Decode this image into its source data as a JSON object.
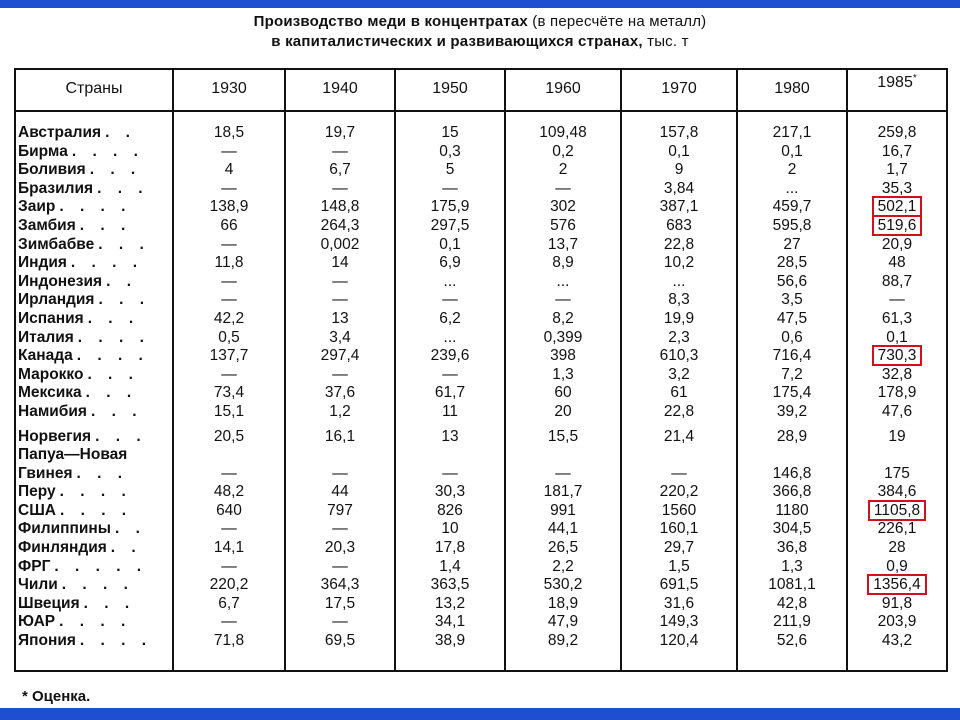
{
  "title": {
    "line1_bold": "Производство меди в концентратах",
    "line1_light": " (в пересчёте на металл)",
    "line2_bold": "в капиталистических и развивающихся странах,",
    "line2_light": " тыс. т"
  },
  "headers": [
    "Страны",
    "1930",
    "1940",
    "1950",
    "1960",
    "1970",
    "1980",
    "1985"
  ],
  "header_asterisk": "*",
  "rows": [
    {
      "country": "Австралия",
      "dots": ". .",
      "values": [
        "18,5",
        "19,7",
        "15",
        "109,48",
        "157,8",
        "217,1",
        "259,8"
      ]
    },
    {
      "country": "Бирма",
      "dots": ". . . .",
      "values": [
        "—",
        "—",
        "0,3",
        "0,2",
        "0,1",
        "0,1",
        "16,7"
      ]
    },
    {
      "country": "Боливия",
      "dots": ". . .",
      "values": [
        "4",
        "6,7",
        "5",
        "2",
        "9",
        "2",
        "1,7"
      ]
    },
    {
      "country": "Бразилия",
      "dots": ". . .",
      "values": [
        "—",
        "—",
        "—",
        "—",
        "3,84",
        "...",
        "35,3"
      ]
    },
    {
      "country": "Заир",
      "dots": ". . . .",
      "values": [
        "138,9",
        "148,8",
        "175,9",
        "302",
        "387,1",
        "459,7",
        "502,1"
      ]
    },
    {
      "country": "Замбия",
      "dots": ". . .",
      "values": [
        "66",
        "264,3",
        "297,5",
        "576",
        "683",
        "595,8",
        "519,6"
      ]
    },
    {
      "country": "Зимбабве",
      "dots": ". . .",
      "values": [
        "—",
        "0,002",
        "0,1",
        "13,7",
        "22,8",
        "27",
        "20,9"
      ]
    },
    {
      "country": "Индия",
      "dots": ". . . .",
      "values": [
        "11,8",
        "14",
        "6,9",
        "8,9",
        "10,2",
        "28,5",
        "48"
      ]
    },
    {
      "country": "Индонезия",
      "dots": ". .",
      "values": [
        "—",
        "—",
        "...",
        "...",
        "...",
        "56,6",
        "88,7"
      ]
    },
    {
      "country": "Ирландия",
      "dots": ". . .",
      "values": [
        "—",
        "—",
        "—",
        "—",
        "8,3",
        "3,5",
        "—"
      ]
    },
    {
      "country": "Испания",
      "dots": ". . .",
      "values": [
        "42,2",
        "13",
        "6,2",
        "8,2",
        "19,9",
        "47,5",
        "61,3"
      ]
    },
    {
      "country": "Италия",
      "dots": ". . . .",
      "values": [
        "0,5",
        "3,4",
        "...",
        "0,399",
        "2,3",
        "0,6",
        "0,1"
      ]
    },
    {
      "country": "Канада",
      "dots": ". . . .",
      "values": [
        "137,7",
        "297,4",
        "239,6",
        "398",
        "610,3",
        "716,4",
        "730,3"
      ]
    },
    {
      "country": "Марокко",
      "dots": ". . .",
      "values": [
        "—",
        "—",
        "—",
        "1,3",
        "3,2",
        "7,2",
        "32,8"
      ]
    },
    {
      "country": "Мексика",
      "dots": ". . .",
      "values": [
        "73,4",
        "37,6",
        "61,7",
        "60",
        "61",
        "175,4",
        "178,9"
      ]
    },
    {
      "country": "Намибия",
      "dots": ". . .",
      "values": [
        "15,1",
        "1,2",
        "11",
        "20",
        "22,8",
        "39,2",
        "47,6"
      ]
    },
    {
      "country": "Норвегия",
      "dots": ". . .",
      "values": [
        "20,5",
        "16,1",
        "13",
        "15,5",
        "21,4",
        "28,9",
        "19"
      ],
      "gap": true
    },
    {
      "country": "Папуа—Новая",
      "dots": "",
      "values": [
        "",
        "",
        "",
        "",
        "",
        "",
        ""
      ]
    },
    {
      "country": " Гвинея",
      "dots": ". . .",
      "values": [
        "—",
        "—",
        "—",
        "—",
        "—",
        "146,8",
        "175"
      ]
    },
    {
      "country": "Перу",
      "dots": ". . . .",
      "values": [
        "48,2",
        "44",
        "30,3",
        "181,7",
        "220,2",
        "366,8",
        "384,6"
      ]
    },
    {
      "country": "США",
      "dots": ". . . .",
      "values": [
        "640",
        "797",
        "826",
        "991",
        "1560",
        "1180",
        "1105,8"
      ]
    },
    {
      "country": "Филиппины",
      "dots": ". .",
      "values": [
        "—",
        "—",
        "10",
        "44,1",
        "160,1",
        "304,5",
        "226,1"
      ]
    },
    {
      "country": "Финляндия",
      "dots": ". .",
      "values": [
        "14,1",
        "20,3",
        "17,8",
        "26,5",
        "29,7",
        "36,8",
        "28"
      ]
    },
    {
      "country": "ФРГ",
      "dots": ". . . . .",
      "values": [
        "—",
        "—",
        "1,4",
        "2,2",
        "1,5",
        "1,3",
        "0,9"
      ]
    },
    {
      "country": "Чили",
      "dots": ". . . .",
      "values": [
        "220,2",
        "364,3",
        "363,5",
        "530,2",
        "691,5",
        "1081,1",
        "1356,4"
      ]
    },
    {
      "country": "Швеция",
      "dots": ". . .",
      "values": [
        "6,7",
        "17,5",
        "13,2",
        "18,9",
        "31,6",
        "42,8",
        "91,8"
      ]
    },
    {
      "country": "ЮАР",
      "dots": ". . . .",
      "values": [
        "—",
        "—",
        "34,1",
        "47,9",
        "149,3",
        "211,9",
        "203,9"
      ]
    },
    {
      "country": "Япония",
      "dots": ". . . .",
      "values": [
        "71,8",
        "69,5",
        "38,9",
        "89,2",
        "120,4",
        "52,6",
        "43,2"
      ]
    }
  ],
  "highlighted": [
    "Заир",
    "Замбия",
    "Канада",
    "США",
    "Чили"
  ],
  "highlight_color": "#d0101c",
  "bar_color": "#1f4fd1",
  "footnote": "* Оценка."
}
